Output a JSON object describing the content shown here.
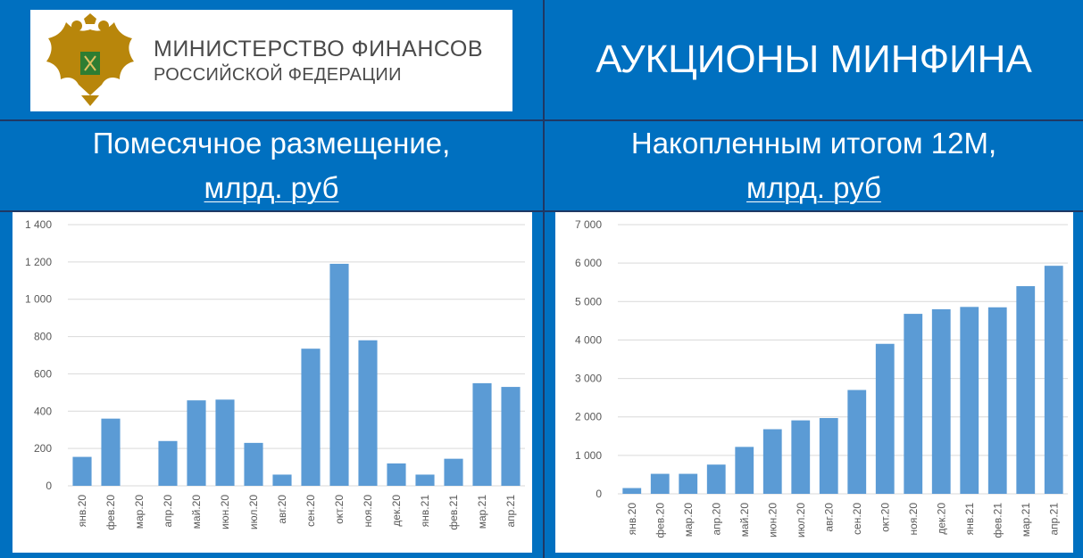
{
  "logo": {
    "line1": "МИНИСТЕРСТВО ФИНАНСОВ",
    "line2": "РОССИЙСКОЙ ФЕДЕРАЦИИ"
  },
  "title": "АУКЦИОНЫ МИНФИНА",
  "headings": {
    "left_line1": "Помесячное размещение,",
    "left_unit": "млрд. руб",
    "right_line1": "Накопленным итогом 12М,",
    "right_unit": "млрд. руб"
  },
  "colors": {
    "background": "#0070c0",
    "bar": "#5b9bd5",
    "grid": "#d9d9d9",
    "tick_text": "#595959"
  },
  "chart_data": [
    {
      "type": "bar",
      "categories": [
        "янв.20",
        "фев.20",
        "мар.20",
        "апр.20",
        "май.20",
        "июн.20",
        "июл.20",
        "авг.20",
        "сен.20",
        "окт.20",
        "ноя.20",
        "дек.20",
        "янв.21",
        "фев.21",
        "мар.21",
        "апр.21"
      ],
      "values": [
        155,
        360,
        0,
        240,
        458,
        462,
        230,
        60,
        735,
        1190,
        780,
        120,
        60,
        145,
        550,
        530
      ],
      "ylim": [
        0,
        1400
      ],
      "yticks": [
        0,
        200,
        400,
        600,
        800,
        1000,
        1200,
        1400
      ],
      "ytick_labels": [
        "0",
        "200",
        "400",
        "600",
        "800",
        "1 000",
        "1 200",
        "1 400"
      ],
      "grid": true
    },
    {
      "type": "bar",
      "categories": [
        "янв.20",
        "фев.20",
        "мар.20",
        "апр.20",
        "май.20",
        "июн.20",
        "июл.20",
        "авг.20",
        "сен.20",
        "окт.20",
        "ноя.20",
        "дек.20",
        "янв.21",
        "фев.21",
        "мар.21",
        "апр.21"
      ],
      "values": [
        150,
        520,
        520,
        760,
        1220,
        1680,
        1910,
        1970,
        2700,
        3900,
        4680,
        4800,
        4860,
        4850,
        5400,
        5930
      ],
      "ylim": [
        0,
        7000
      ],
      "yticks": [
        0,
        1000,
        2000,
        3000,
        4000,
        5000,
        6000,
        7000
      ],
      "ytick_labels": [
        "0",
        "1 000",
        "2 000",
        "3 000",
        "4 000",
        "5 000",
        "6 000",
        "7 000"
      ],
      "grid": true
    }
  ]
}
